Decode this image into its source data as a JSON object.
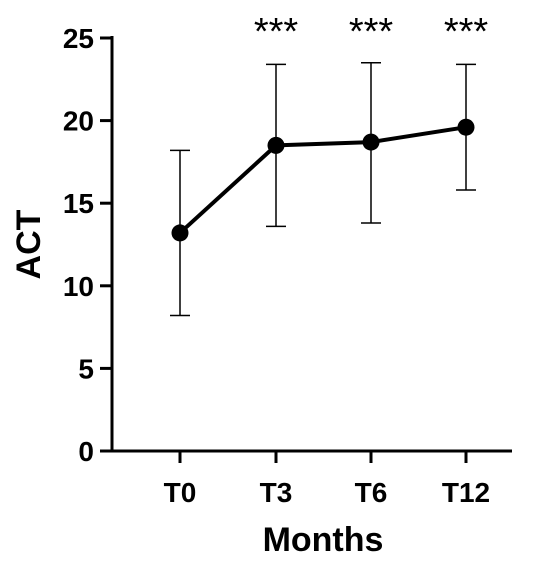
{
  "chart_data": {
    "type": "line",
    "title": "",
    "xlabel": "Months",
    "ylabel": "ACT",
    "categories": [
      "T0",
      "T3",
      "T6",
      "T12"
    ],
    "series": [
      {
        "values": [
          13.2,
          18.5,
          18.7,
          19.6
        ],
        "error_low": [
          8.2,
          13.6,
          13.8,
          15.8
        ],
        "error_high": [
          18.2,
          23.4,
          23.5,
          23.4
        ]
      }
    ],
    "annotations": [
      "",
      "***",
      "***",
      "***"
    ],
    "ylim": [
      0,
      25
    ],
    "yticks": [
      "0",
      "5",
      "10",
      "15",
      "20",
      "25"
    ],
    "grid": false,
    "legend": "none",
    "colors": {
      "line": "#000000",
      "marker": "#000000",
      "axis": "#000000"
    }
  }
}
